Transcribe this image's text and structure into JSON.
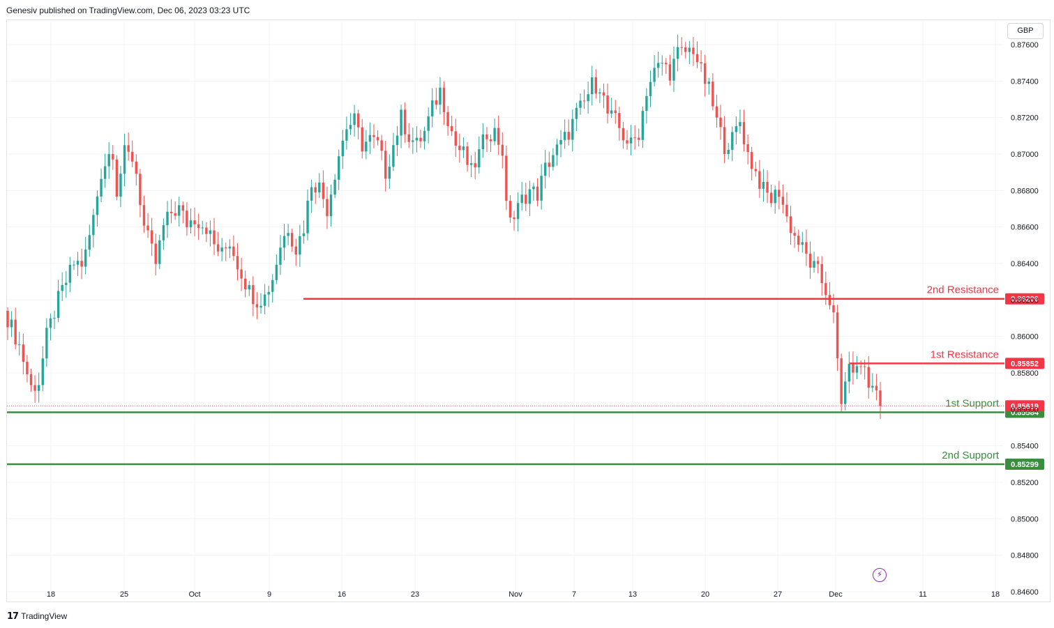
{
  "header": {
    "published": "Genesiv published on TradingView.com, Dec 06, 2023 03:23 UTC"
  },
  "currency": "GBP",
  "footer": {
    "logo": "17",
    "brand": "TradingView"
  },
  "icons": {
    "bolt": "lightning-bolt-icon",
    "logo": "tradingview-logo-icon"
  },
  "colors": {
    "up": "#26a69a",
    "down": "#ef5350",
    "resistance": "#f23645",
    "support": "#388e3c",
    "grid": "#f0f3fa",
    "axis_text": "#131722"
  },
  "chart_data": {
    "type": "candlestick",
    "symbol_currency": "GBP",
    "ylim": [
      0.8455,
      0.8773
    ],
    "y_ticks": [
      "0.87600",
      "0.87400",
      "0.87200",
      "0.87000",
      "0.86800",
      "0.86600",
      "0.86400",
      "0.86200",
      "0.86000",
      "0.85800",
      "0.85600",
      "0.85400",
      "0.85200",
      "0.85000",
      "0.84800",
      "0.84600"
    ],
    "x_ticks": [
      "18",
      "25",
      "Oct",
      "9",
      "16",
      "23",
      "Nov",
      "7",
      "13",
      "20",
      "27",
      "Dec",
      "11",
      "18"
    ],
    "last_price": "0.85619",
    "levels": [
      {
        "name": "2nd Resistance",
        "value": "0.86206",
        "kind": "resistance"
      },
      {
        "name": "1st Resistance",
        "value": "0.85852",
        "kind": "resistance"
      },
      {
        "name": "1st Support",
        "value": "0.85584",
        "kind": "support"
      },
      {
        "name": "2nd Support",
        "value": "0.85299",
        "kind": "support"
      }
    ],
    "close_path": [
      [
        0,
        0.861
      ],
      [
        3,
        0.8595
      ],
      [
        6,
        0.8572
      ],
      [
        8,
        0.8575
      ],
      [
        10,
        0.86
      ],
      [
        13,
        0.862
      ],
      [
        15,
        0.863
      ],
      [
        17,
        0.864
      ],
      [
        19,
        0.864
      ],
      [
        20,
        0.8645
      ],
      [
        22,
        0.8665
      ],
      [
        24,
        0.869
      ],
      [
        26,
        0.87
      ],
      [
        27,
        0.8702
      ],
      [
        28,
        0.868
      ],
      [
        30,
        0.87
      ],
      [
        32,
        0.8698
      ],
      [
        33,
        0.869
      ],
      [
        35,
        0.866
      ],
      [
        38,
        0.864
      ],
      [
        40,
        0.866
      ],
      [
        42,
        0.8668
      ],
      [
        44,
        0.867
      ],
      [
        46,
        0.8662
      ],
      [
        48,
        0.8665
      ],
      [
        51,
        0.866
      ],
      [
        53,
        0.865
      ],
      [
        55,
        0.8645
      ],
      [
        57,
        0.8652
      ],
      [
        59,
        0.864
      ],
      [
        62,
        0.8625
      ],
      [
        64,
        0.862
      ],
      [
        66,
        0.8622
      ],
      [
        68,
        0.8632
      ],
      [
        70,
        0.865
      ],
      [
        72,
        0.866
      ],
      [
        74,
        0.8648
      ],
      [
        76,
        0.866
      ],
      [
        78,
        0.8685
      ],
      [
        80,
        0.8682
      ],
      [
        82,
        0.867
      ],
      [
        83,
        0.868
      ],
      [
        85,
        0.87
      ],
      [
        87,
        0.8715
      ],
      [
        89,
        0.8718
      ],
      [
        91,
        0.8705
      ],
      [
        93,
        0.8708
      ],
      [
        95,
        0.8705
      ],
      [
        97,
        0.869
      ],
      [
        99,
        0.8705
      ],
      [
        101,
        0.872
      ],
      [
        103,
        0.871
      ],
      [
        105,
        0.8705
      ],
      [
        107,
        0.8712
      ],
      [
        109,
        0.8725
      ],
      [
        111,
        0.8735
      ],
      [
        113,
        0.872
      ],
      [
        115,
        0.8705
      ],
      [
        117,
        0.87
      ],
      [
        119,
        0.869
      ],
      [
        121,
        0.87
      ],
      [
        123,
        0.8712
      ],
      [
        125,
        0.8712
      ],
      [
        127,
        0.8702
      ],
      [
        128,
        0.867
      ],
      [
        130,
        0.8665
      ],
      [
        132,
        0.8675
      ],
      [
        134,
        0.868
      ],
      [
        136,
        0.8678
      ],
      [
        138,
        0.8692
      ],
      [
        140,
        0.87
      ],
      [
        142,
        0.8705
      ],
      [
        144,
        0.8712
      ],
      [
        146,
        0.8722
      ],
      [
        148,
        0.8728
      ],
      [
        150,
        0.8738
      ],
      [
        152,
        0.8738
      ],
      [
        154,
        0.8722
      ],
      [
        156,
        0.8718
      ],
      [
        158,
        0.871
      ],
      [
        160,
        0.8705
      ],
      [
        162,
        0.8712
      ],
      [
        164,
        0.8735
      ],
      [
        166,
        0.8745
      ],
      [
        168,
        0.875
      ],
      [
        170,
        0.8745
      ],
      [
        172,
        0.8755
      ],
      [
        174,
        0.8756
      ],
      [
        176,
        0.8758
      ],
      [
        178,
        0.8745
      ],
      [
        180,
        0.8735
      ],
      [
        182,
        0.8718
      ],
      [
        184,
        0.8705
      ],
      [
        186,
        0.8708
      ],
      [
        188,
        0.8718
      ],
      [
        190,
        0.87
      ],
      [
        192,
        0.869
      ],
      [
        194,
        0.868
      ],
      [
        196,
        0.8675
      ],
      [
        198,
        0.868
      ],
      [
        200,
        0.8665
      ],
      [
        202,
        0.8655
      ],
      [
        204,
        0.8648
      ],
      [
        206,
        0.864
      ],
      [
        208,
        0.8635
      ],
      [
        210,
        0.8625
      ],
      [
        211,
        0.862
      ],
      [
        212,
        0.861
      ],
      [
        213,
        0.8585
      ],
      [
        214,
        0.8562
      ],
      [
        215,
        0.8578
      ],
      [
        216,
        0.858
      ],
      [
        217,
        0.8584
      ],
      [
        218,
        0.858
      ],
      [
        219,
        0.8585
      ],
      [
        220,
        0.8582
      ],
      [
        221,
        0.8572
      ],
      [
        222,
        0.8575
      ],
      [
        223,
        0.8568
      ],
      [
        224,
        0.8562
      ]
    ]
  }
}
